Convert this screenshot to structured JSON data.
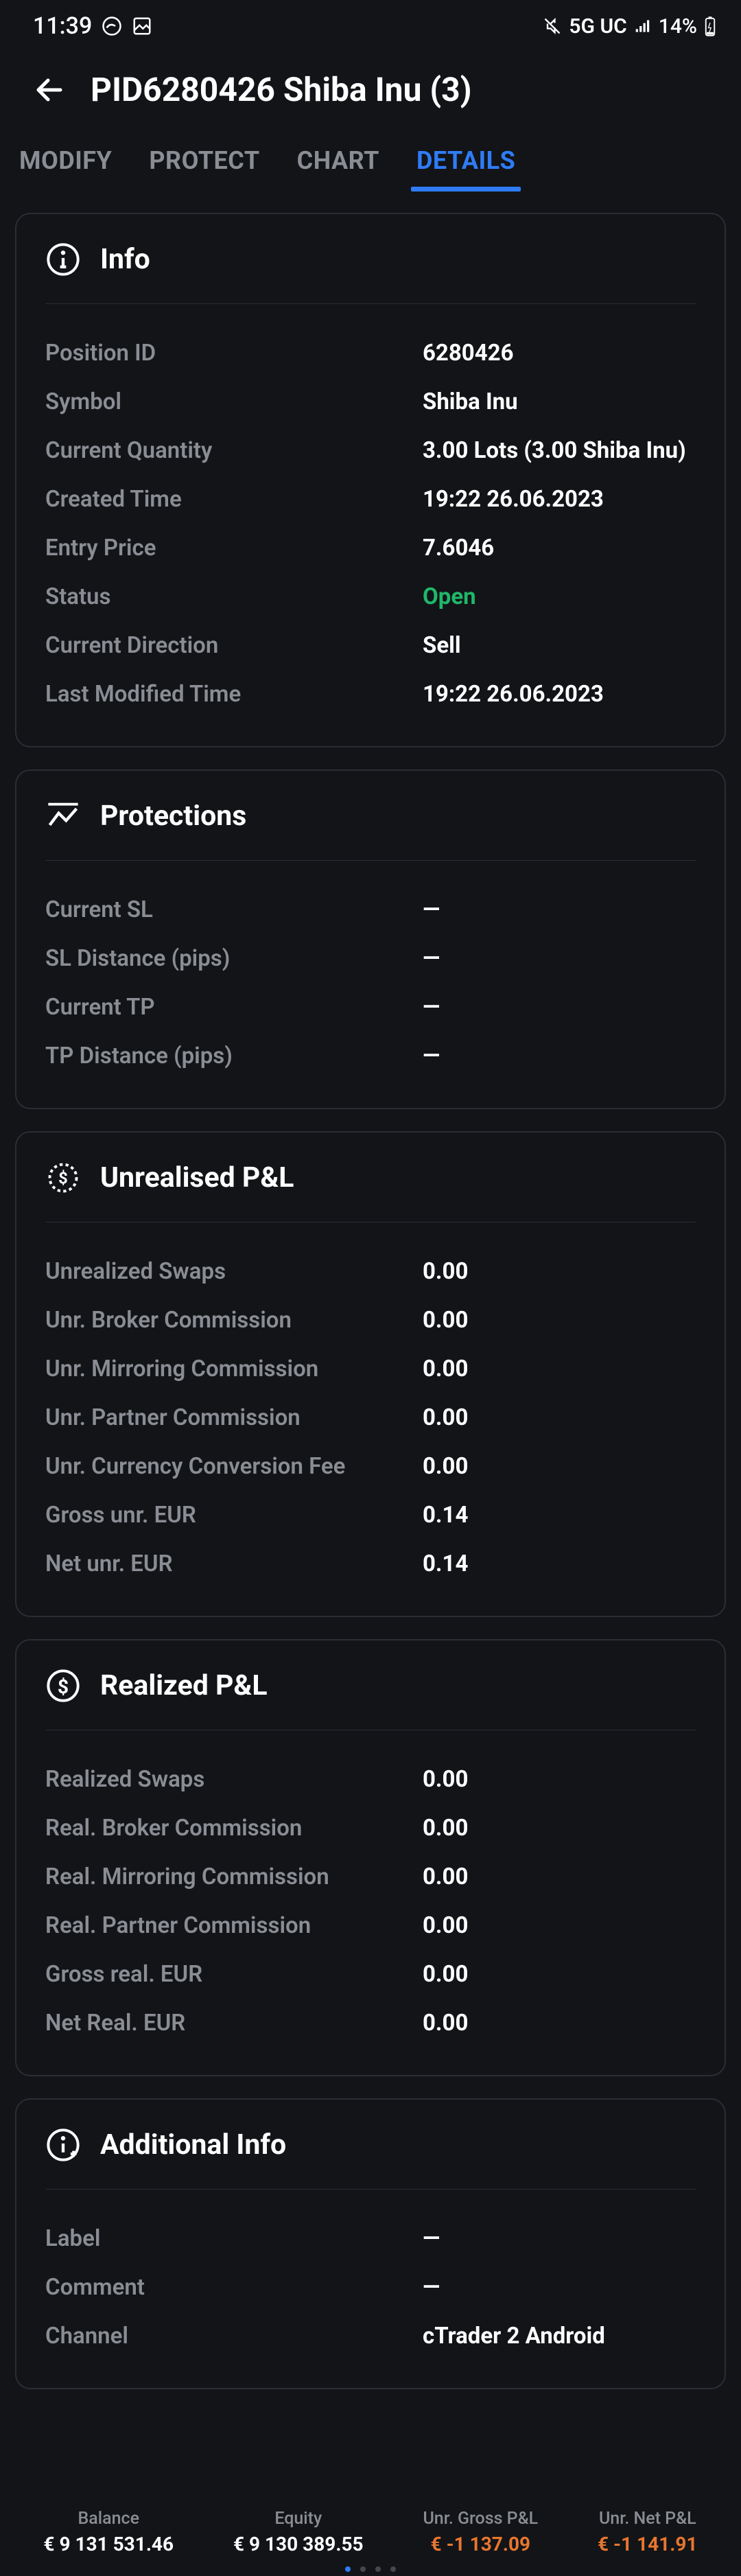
{
  "status": {
    "time": "11:39",
    "network": "5G UC",
    "battery": "14%"
  },
  "header": {
    "title": "PID6280426 Shiba Inu (3)"
  },
  "tabs": [
    {
      "label": "MODIFY",
      "active": false
    },
    {
      "label": "PROTECT",
      "active": false
    },
    {
      "label": "CHART",
      "active": false
    },
    {
      "label": "DETAILS",
      "active": true
    }
  ],
  "sections": {
    "info": {
      "title": "Info",
      "rows": [
        {
          "label": "Position ID",
          "value": "6280426"
        },
        {
          "label": "Symbol",
          "value": "Shiba Inu"
        },
        {
          "label": "Current Quantity",
          "value": "3.00 Lots (3.00 Shiba Inu)"
        },
        {
          "label": "Created Time",
          "value": "19:22 26.06.2023"
        },
        {
          "label": "Entry Price",
          "value": "7.6046"
        },
        {
          "label": "Status",
          "value": "Open",
          "color": "green"
        },
        {
          "label": "Current Direction",
          "value": "Sell"
        },
        {
          "label": "Last Modified Time",
          "value": "19:22 26.06.2023"
        }
      ]
    },
    "protections": {
      "title": "Protections",
      "rows": [
        {
          "label": "Current SL",
          "value": "—"
        },
        {
          "label": "SL Distance (pips)",
          "value": "—"
        },
        {
          "label": "Current TP",
          "value": "—"
        },
        {
          "label": "TP Distance (pips)",
          "value": "—"
        }
      ]
    },
    "unrealised": {
      "title": "Unrealised P&L",
      "rows": [
        {
          "label": "Unrealized Swaps",
          "value": "0.00"
        },
        {
          "label": "Unr. Broker Commission",
          "value": "0.00"
        },
        {
          "label": "Unr. Mirroring Commission",
          "value": "0.00"
        },
        {
          "label": "Unr. Partner Commission",
          "value": "0.00"
        },
        {
          "label": "Unr. Currency Conversion Fee",
          "value": "0.00"
        },
        {
          "label": "Gross unr. EUR",
          "value": "0.14"
        },
        {
          "label": "Net unr. EUR",
          "value": "0.14"
        }
      ]
    },
    "realized": {
      "title": "Realized P&L",
      "rows": [
        {
          "label": "Realized Swaps",
          "value": "0.00"
        },
        {
          "label": "Real. Broker Commission",
          "value": "0.00"
        },
        {
          "label": "Real. Mirroring Commission",
          "value": "0.00"
        },
        {
          "label": "Real. Partner Commission",
          "value": "0.00"
        },
        {
          "label": "Gross real. EUR",
          "value": "0.00"
        },
        {
          "label": "Net Real. EUR",
          "value": "0.00"
        }
      ]
    },
    "additional": {
      "title": "Additional Info",
      "rows": [
        {
          "label": "Label",
          "value": "—"
        },
        {
          "label": "Comment",
          "value": "—"
        },
        {
          "label": "Channel",
          "value": "cTrader 2 Android"
        }
      ]
    }
  },
  "bottomBar": [
    {
      "label": "Balance",
      "value": "€ 9 131 531.46",
      "color": "white"
    },
    {
      "label": "Equity",
      "value": "€ 9 130 389.55",
      "color": "white"
    },
    {
      "label": "Unr. Gross P&L",
      "value": "€ -1 137.09",
      "color": "orange"
    },
    {
      "label": "Unr. Net P&L",
      "value": "€ -1 141.91",
      "color": "orange"
    }
  ]
}
